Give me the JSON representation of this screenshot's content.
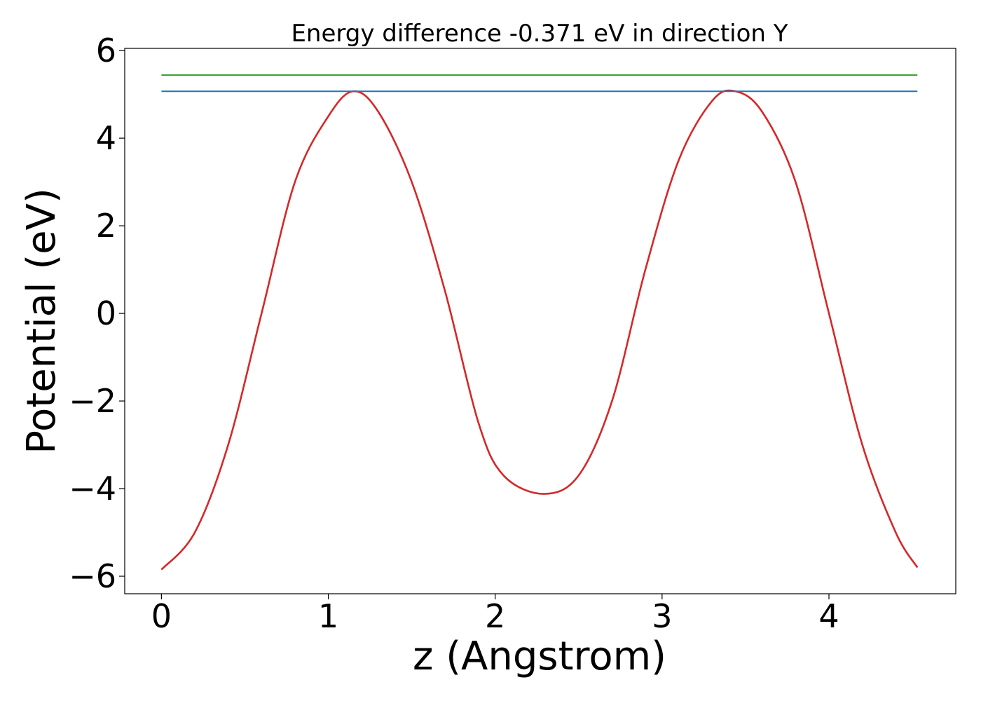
{
  "chart_data": {
    "type": "line",
    "title": "Energy difference -0.371 eV in direction Y",
    "xlabel": "z (Angstrom)",
    "ylabel": "Potential (eV)",
    "xlim": [
      -0.22,
      4.76
    ],
    "ylim": [
      -6.4,
      6.05
    ],
    "xticks": [
      0,
      1,
      2,
      3,
      4
    ],
    "xtick_labels": [
      "0",
      "1",
      "2",
      "3",
      "4"
    ],
    "yticks": [
      -6,
      -4,
      -2,
      0,
      2,
      4,
      6
    ],
    "ytick_labels": [
      "−6",
      "−4",
      "−2",
      "0",
      "2",
      "4",
      "6"
    ],
    "grid": false,
    "series": [
      {
        "color": "#d62728",
        "x": [
          0,
          0.2,
          0.4,
          0.6,
          0.8,
          1.0,
          1.15,
          1.3,
          1.5,
          1.7,
          1.9,
          2.05,
          2.29,
          2.5,
          2.7,
          2.9,
          3.1,
          3.3,
          3.44,
          3.6,
          3.8,
          4.0,
          4.2,
          4.4,
          4.53
        ],
        "y": [
          -5.85,
          -5.0,
          -3.0,
          0.0,
          3.0,
          4.5,
          5.07,
          4.6,
          3.0,
          0.5,
          -2.5,
          -3.7,
          -4.12,
          -3.7,
          -2.0,
          1.0,
          3.5,
          4.85,
          5.07,
          4.6,
          3.0,
          0.0,
          -3.0,
          -5.0,
          -5.8
        ]
      },
      {
        "color": "#1f77b4",
        "x": [
          0,
          4.53
        ],
        "y": [
          5.07,
          5.07
        ]
      },
      {
        "color": "#2ca02c",
        "x": [
          0,
          4.53
        ],
        "y": [
          5.44,
          5.44
        ]
      }
    ]
  }
}
